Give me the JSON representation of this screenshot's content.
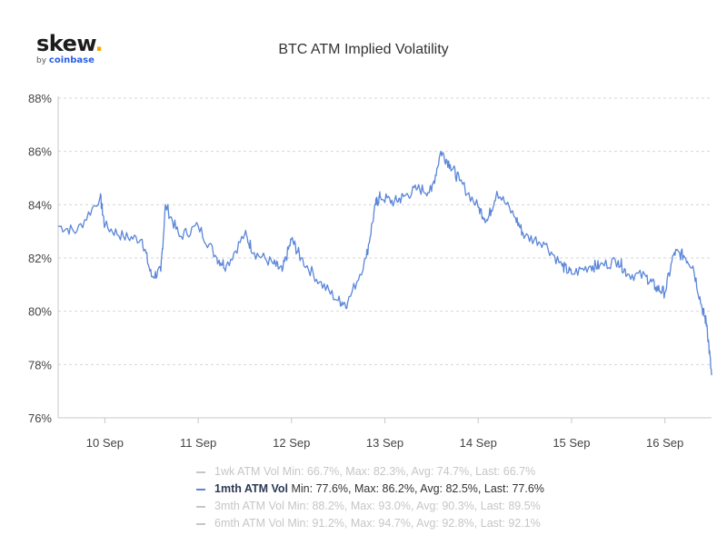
{
  "logo": {
    "wordmark": "skew",
    "dot": ".",
    "by": "by",
    "brand": "coinbase"
  },
  "chart_data": {
    "type": "line",
    "title": "BTC ATM Implied Volatility",
    "xlabel": "",
    "ylabel": "",
    "ylim": [
      76,
      88
    ],
    "xlim": [
      9.5,
      16.5
    ],
    "y_ticks": [
      76,
      78,
      80,
      82,
      84,
      86,
      88
    ],
    "y_tick_labels": [
      "76%",
      "78%",
      "80%",
      "82%",
      "84%",
      "86%",
      "88%"
    ],
    "x_ticks": [
      10,
      11,
      12,
      13,
      14,
      15,
      16
    ],
    "x_tick_labels": [
      "10 Sep",
      "11 Sep",
      "12 Sep",
      "13 Sep",
      "14 Sep",
      "15 Sep",
      "16 Sep"
    ],
    "grid": true,
    "legend_position": "bottom",
    "line_color": "#5b86d8",
    "series": [
      {
        "name": "1mth ATM Vol",
        "x": [
          9.5,
          9.7,
          9.95,
          10.0,
          10.2,
          10.4,
          10.5,
          10.6,
          10.65,
          10.8,
          11.0,
          11.2,
          11.3,
          11.5,
          11.6,
          11.8,
          11.9,
          12.0,
          12.1,
          12.3,
          12.5,
          12.6,
          12.8,
          12.9,
          12.95,
          13.1,
          13.2,
          13.35,
          13.5,
          13.6,
          13.7,
          13.8,
          14.0,
          14.1,
          14.2,
          14.4,
          14.5,
          14.7,
          14.9,
          15.0,
          15.2,
          15.3,
          15.5,
          15.6,
          15.8,
          15.9,
          16.0,
          16.1,
          16.2,
          16.3,
          16.4,
          16.45,
          16.5
        ],
        "values": [
          83.2,
          83.0,
          84.3,
          83.2,
          82.8,
          82.7,
          81.3,
          81.5,
          84.0,
          82.8,
          83.2,
          82.0,
          81.7,
          82.9,
          82.2,
          81.8,
          81.5,
          82.7,
          82.0,
          81.1,
          80.4,
          80.3,
          82.0,
          84.0,
          84.3,
          84.1,
          84.3,
          84.6,
          84.5,
          86.0,
          85.5,
          84.9,
          83.9,
          83.4,
          84.5,
          83.5,
          82.8,
          82.6,
          81.7,
          81.4,
          81.7,
          81.7,
          81.9,
          81.4,
          81.3,
          80.9,
          80.7,
          82.2,
          82.1,
          81.7,
          80.1,
          79.5,
          77.6
        ]
      }
    ],
    "legend": [
      {
        "name": "1wk ATM Vol",
        "stats": "Min: 66.7%, Max: 82.3%, Avg: 74.7%, Last: 66.7%",
        "visible": false
      },
      {
        "name": "1mth ATM Vol",
        "stats": "Min: 77.6%, Max: 86.2%, Avg: 82.5%, Last: 77.6%",
        "visible": true
      },
      {
        "name": "3mth ATM Vol",
        "stats": "Min: 88.2%, Max: 93.0%, Avg: 90.3%, Last: 89.5%",
        "visible": false
      },
      {
        "name": "6mth ATM Vol",
        "stats": "Min: 91.2%, Max: 94.7%, Avg: 92.8%, Last: 92.1%",
        "visible": false
      }
    ]
  }
}
